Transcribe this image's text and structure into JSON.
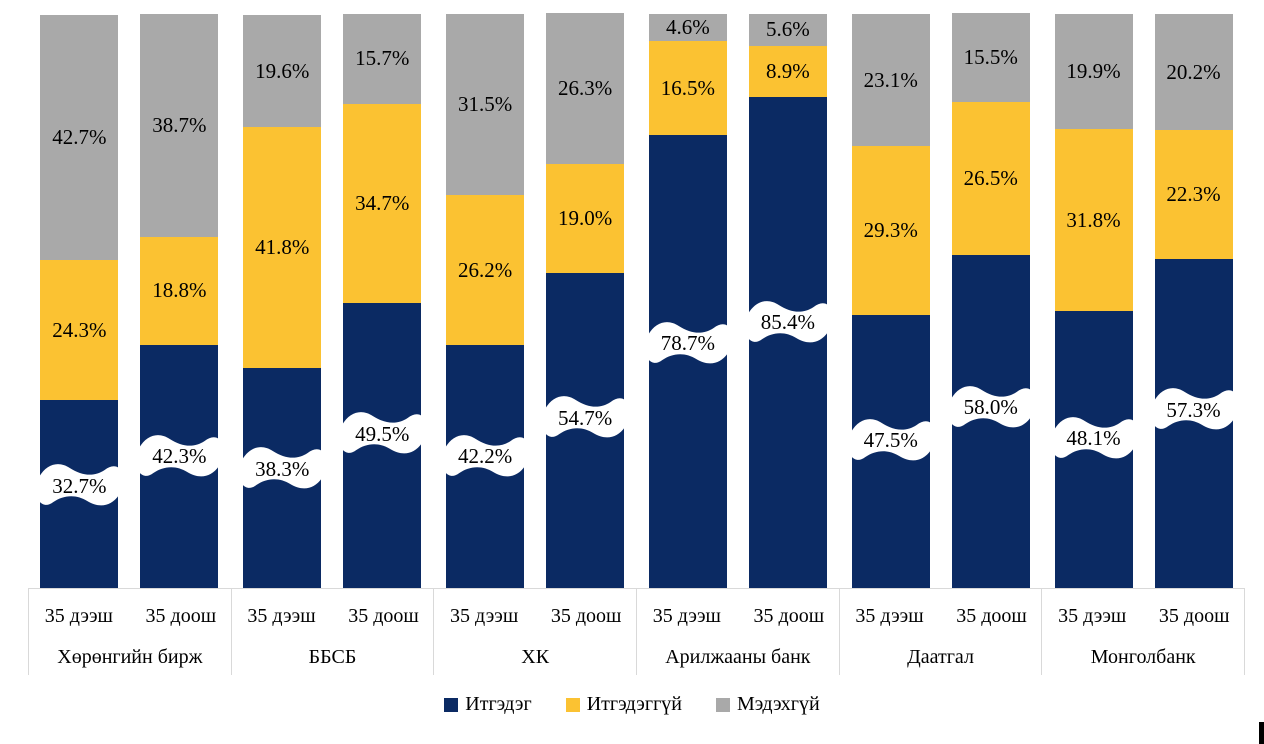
{
  "chart_data": {
    "type": "bar",
    "variant": "stacked-100",
    "unit": "%",
    "title": "",
    "gridlines": false,
    "value_axis_hidden": true,
    "ylim": [
      0,
      100
    ],
    "legend_position": "bottom",
    "groups": [
      "Хөрөнгийн бирж",
      "ББСБ",
      "ХК",
      "Арилжааны банк",
      "Даатгал",
      "Монголбанк"
    ],
    "subcategories": [
      "35 дээш",
      "35 доош"
    ],
    "series": [
      {
        "name": "Итгэдэг",
        "slug": "trust",
        "color": "#0b2a63",
        "label_style": "white-wave-break",
        "values": [
          [
            32.7,
            42.3
          ],
          [
            38.3,
            49.5
          ],
          [
            42.2,
            54.7
          ],
          [
            78.7,
            85.4
          ],
          [
            47.5,
            58.0
          ],
          [
            48.1,
            57.3
          ]
        ]
      },
      {
        "name": "Итгэдэггүй",
        "slug": "no-trust",
        "color": "#fbc232",
        "label_style": "inside-center",
        "values": [
          [
            24.3,
            18.8
          ],
          [
            41.8,
            34.7
          ],
          [
            26.2,
            19.0
          ],
          [
            16.5,
            8.9
          ],
          [
            29.3,
            26.5
          ],
          [
            31.8,
            22.3
          ]
        ]
      },
      {
        "name": "Мэдэхгүй",
        "slug": "dont-know",
        "color": "#a9a9a9",
        "label_style": "inside-center",
        "values": [
          [
            42.7,
            38.7
          ],
          [
            19.6,
            15.7
          ],
          [
            31.5,
            26.3
          ],
          [
            4.6,
            5.6
          ],
          [
            23.1,
            15.5
          ],
          [
            19.9,
            20.2
          ]
        ]
      }
    ],
    "value_label_format": "one-decimal-percent",
    "border_color": "#d9d9d9",
    "label_color": "#000000"
  }
}
